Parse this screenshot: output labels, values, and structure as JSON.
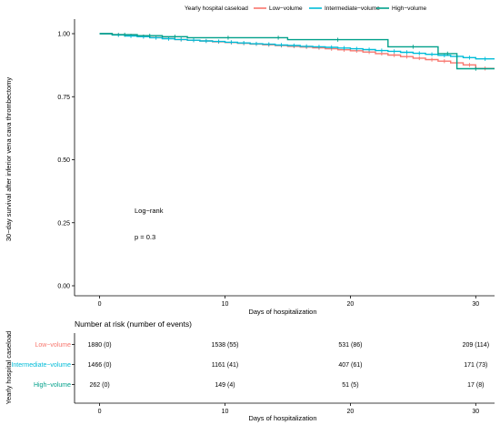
{
  "legend": {
    "title": "Yearly hospital caseload",
    "items": [
      {
        "label": "Low−volume",
        "color": "#F8766D"
      },
      {
        "label": "Intermediate−volume",
        "color": "#00BCD8"
      },
      {
        "label": "High−volume",
        "color": "#00A08A"
      }
    ]
  },
  "annotations": {
    "logrank": "Log−rank",
    "pvalue": "p = 0.3"
  },
  "risk_table": {
    "title": "Number at risk (number of events)",
    "ylabel": "Yearly hospital caseload",
    "xlabel": "Days of hospitalization",
    "ticks": [
      "0",
      "10",
      "20",
      "30"
    ]
  },
  "chart_data": {
    "type": "line",
    "title": "",
    "xlabel": "Days of hospitalization",
    "ylabel": "30−day survival after inferior vena cava thrombectomy",
    "xlim": [
      -2,
      31.5
    ],
    "ylim": [
      0,
      1
    ],
    "xticks": [
      0,
      10,
      20,
      30
    ],
    "yticks": [
      "0.00",
      "0.25",
      "0.50",
      "0.75",
      "1.00"
    ],
    "series": [
      {
        "name": "Low−volume",
        "color": "#F8766D",
        "x": [
          0,
          1,
          2,
          3,
          4,
          5,
          6,
          7,
          8,
          9,
          10,
          11,
          12,
          13,
          14,
          15,
          16,
          17,
          18,
          19,
          20,
          21,
          22,
          23,
          24,
          25,
          26,
          27,
          28,
          29,
          30,
          31.5
        ],
        "y": [
          1.0,
          0.996,
          0.992,
          0.989,
          0.985,
          0.981,
          0.977,
          0.974,
          0.971,
          0.968,
          0.965,
          0.962,
          0.959,
          0.956,
          0.953,
          0.95,
          0.947,
          0.944,
          0.94,
          0.936,
          0.932,
          0.927,
          0.921,
          0.915,
          0.909,
          0.903,
          0.897,
          0.891,
          0.884,
          0.876,
          0.862,
          0.862
        ]
      },
      {
        "name": "Intermediate−volume",
        "color": "#00BCD8",
        "x": [
          0,
          1,
          2,
          3,
          4,
          5,
          6,
          7,
          8,
          9,
          10,
          11,
          12,
          13,
          14,
          15,
          16,
          17,
          18,
          19,
          20,
          21,
          22,
          23,
          24,
          25,
          26,
          27,
          28,
          29,
          30,
          31.5
        ],
        "y": [
          1.0,
          0.995,
          0.991,
          0.988,
          0.984,
          0.98,
          0.977,
          0.974,
          0.971,
          0.969,
          0.966,
          0.963,
          0.96,
          0.958,
          0.955,
          0.953,
          0.95,
          0.948,
          0.946,
          0.943,
          0.94,
          0.937,
          0.933,
          0.93,
          0.926,
          0.922,
          0.918,
          0.914,
          0.91,
          0.905,
          0.9,
          0.9
        ]
      },
      {
        "name": "High−volume",
        "color": "#00A08A",
        "x": [
          0,
          1,
          3,
          5,
          7,
          13.5,
          15,
          23,
          27,
          28.5,
          31.5
        ],
        "y": [
          1.0,
          0.996,
          0.992,
          0.988,
          0.984,
          0.984,
          0.976,
          0.948,
          0.921,
          0.861,
          0.861
        ]
      }
    ],
    "risk_rows": [
      {
        "name": "Low−volume",
        "color": "#F8766D",
        "values": [
          "1880 (0)",
          "1538 (55)",
          "531 (86)",
          "209 (114)"
        ]
      },
      {
        "name": "Intermediate−volume",
        "color": "#00BCD8",
        "values": [
          "1466 (0)",
          "1161 (41)",
          "407 (61)",
          "171 (73)"
        ]
      },
      {
        "name": "High−volume",
        "color": "#00A08A",
        "values": [
          "262 (0)",
          "149 (4)",
          "51 (5)",
          "17 (8)"
        ]
      }
    ]
  }
}
